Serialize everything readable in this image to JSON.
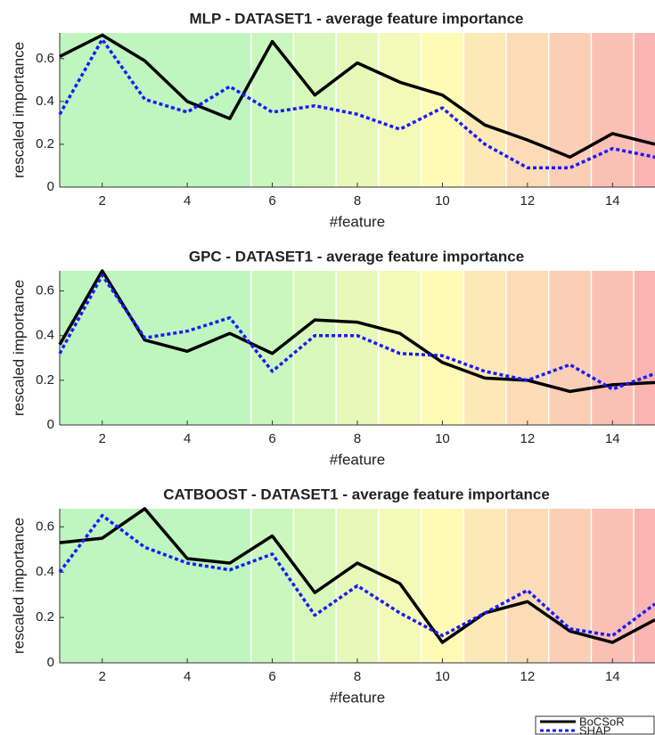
{
  "chart_data": [
    {
      "type": "line",
      "title": "MLP - DATASET1 - average feature importance",
      "x_label": "#feature",
      "y_label": "rescaled importance",
      "x": [
        1,
        2,
        3,
        4,
        5,
        6,
        7,
        8,
        9,
        10,
        11,
        12,
        13,
        14,
        15
      ],
      "series": [
        {
          "name": "BoCSoR",
          "color": "#000000",
          "values": [
            0.61,
            0.71,
            0.59,
            0.4,
            0.32,
            0.68,
            0.43,
            0.58,
            0.49,
            0.43,
            0.29,
            0.22,
            0.14,
            0.25,
            0.2
          ]
        },
        {
          "name": "SHAP",
          "color": "#1a1aff",
          "values": [
            0.34,
            0.69,
            0.41,
            0.35,
            0.47,
            0.35,
            0.38,
            0.34,
            0.27,
            0.37,
            0.2,
            0.09,
            0.09,
            0.18,
            0.14
          ]
        }
      ],
      "xlim": [
        1,
        15
      ],
      "ylim": [
        0,
        0.72
      ],
      "xticks": [
        2,
        4,
        6,
        8,
        10,
        12,
        14
      ],
      "yticks": [
        0,
        0.2,
        0.4,
        0.6
      ],
      "bands": [
        {
          "from": 1,
          "to": 5.5,
          "color": "#bff5bf"
        },
        {
          "from": 5.5,
          "to": 6.5,
          "color": "#caf7bd"
        },
        {
          "from": 6.5,
          "to": 7.5,
          "color": "#d8f8bb"
        },
        {
          "from": 7.5,
          "to": 8.5,
          "color": "#e6f9b9"
        },
        {
          "from": 8.5,
          "to": 9.5,
          "color": "#f3fab8"
        },
        {
          "from": 9.5,
          "to": 10.5,
          "color": "#fffbb7"
        },
        {
          "from": 10.5,
          "to": 11.5,
          "color": "#fde9b7"
        },
        {
          "from": 11.5,
          "to": 12.5,
          "color": "#fcdcb7"
        },
        {
          "from": 12.5,
          "to": 13.5,
          "color": "#fbceb6"
        },
        {
          "from": 13.5,
          "to": 14.5,
          "color": "#fbc0b4"
        },
        {
          "from": 14.5,
          "to": 15,
          "color": "#fab4b1"
        }
      ]
    },
    {
      "type": "line",
      "title": "GPC - DATASET1 - average feature importance",
      "x_label": "#feature",
      "y_label": "rescaled importance",
      "x": [
        1,
        2,
        3,
        4,
        5,
        6,
        7,
        8,
        9,
        10,
        11,
        12,
        13,
        14,
        15
      ],
      "series": [
        {
          "name": "BoCSoR",
          "color": "#000000",
          "values": [
            0.36,
            0.69,
            0.38,
            0.33,
            0.41,
            0.32,
            0.47,
            0.46,
            0.41,
            0.28,
            0.21,
            0.2,
            0.15,
            0.18,
            0.19
          ]
        },
        {
          "name": "SHAP",
          "color": "#1a1aff",
          "values": [
            0.32,
            0.67,
            0.39,
            0.42,
            0.48,
            0.24,
            0.4,
            0.4,
            0.32,
            0.31,
            0.24,
            0.2,
            0.27,
            0.16,
            0.23
          ]
        }
      ],
      "xlim": [
        1,
        15
      ],
      "ylim": [
        0,
        0.69
      ],
      "xticks": [
        2,
        4,
        6,
        8,
        10,
        12,
        14
      ],
      "yticks": [
        0,
        0.2,
        0.4,
        0.6
      ],
      "bands": [
        {
          "from": 1,
          "to": 5.5,
          "color": "#bff5bf"
        },
        {
          "from": 5.5,
          "to": 6.5,
          "color": "#caf7bd"
        },
        {
          "from": 6.5,
          "to": 7.5,
          "color": "#d8f8bb"
        },
        {
          "from": 7.5,
          "to": 8.5,
          "color": "#e6f9b9"
        },
        {
          "from": 8.5,
          "to": 9.5,
          "color": "#f3fab8"
        },
        {
          "from": 9.5,
          "to": 10.5,
          "color": "#fffbb7"
        },
        {
          "from": 10.5,
          "to": 11.5,
          "color": "#fde9b7"
        },
        {
          "from": 11.5,
          "to": 12.5,
          "color": "#fcdcb7"
        },
        {
          "from": 12.5,
          "to": 13.5,
          "color": "#fbceb6"
        },
        {
          "from": 13.5,
          "to": 14.5,
          "color": "#fbc0b4"
        },
        {
          "from": 14.5,
          "to": 15,
          "color": "#fab4b1"
        }
      ]
    },
    {
      "type": "line",
      "title": "CATBOOST - DATASET1 - average feature importance",
      "x_label": "#feature",
      "y_label": "rescaled importance",
      "x": [
        1,
        2,
        3,
        4,
        5,
        6,
        7,
        8,
        9,
        10,
        11,
        12,
        13,
        14,
        15
      ],
      "series": [
        {
          "name": "BoCSoR",
          "color": "#000000",
          "values": [
            0.53,
            0.55,
            0.68,
            0.46,
            0.44,
            0.56,
            0.31,
            0.44,
            0.35,
            0.09,
            0.22,
            0.27,
            0.14,
            0.09,
            0.19
          ]
        },
        {
          "name": "SHAP",
          "color": "#1a1aff",
          "values": [
            0.4,
            0.65,
            0.51,
            0.44,
            0.41,
            0.48,
            0.21,
            0.34,
            0.22,
            0.12,
            0.22,
            0.32,
            0.15,
            0.12,
            0.26
          ]
        }
      ],
      "xlim": [
        1,
        15
      ],
      "ylim": [
        0,
        0.68
      ],
      "xticks": [
        2,
        4,
        6,
        8,
        10,
        12,
        14
      ],
      "yticks": [
        0,
        0.2,
        0.4,
        0.6
      ],
      "legend": "bottom right",
      "bands": [
        {
          "from": 1,
          "to": 5.5,
          "color": "#bff5bf"
        },
        {
          "from": 5.5,
          "to": 6.5,
          "color": "#caf7bd"
        },
        {
          "from": 6.5,
          "to": 7.5,
          "color": "#d8f8bb"
        },
        {
          "from": 7.5,
          "to": 8.5,
          "color": "#e6f9b9"
        },
        {
          "from": 8.5,
          "to": 9.5,
          "color": "#f3fab8"
        },
        {
          "from": 9.5,
          "to": 10.5,
          "color": "#fffbb7"
        },
        {
          "from": 10.5,
          "to": 11.5,
          "color": "#fde9b7"
        },
        {
          "from": 11.5,
          "to": 12.5,
          "color": "#fcdcb7"
        },
        {
          "from": 12.5,
          "to": 13.5,
          "color": "#fbceb6"
        },
        {
          "from": 13.5,
          "to": 14.5,
          "color": "#fbc0b4"
        },
        {
          "from": 14.5,
          "to": 15,
          "color": "#fab4b1"
        }
      ]
    }
  ]
}
